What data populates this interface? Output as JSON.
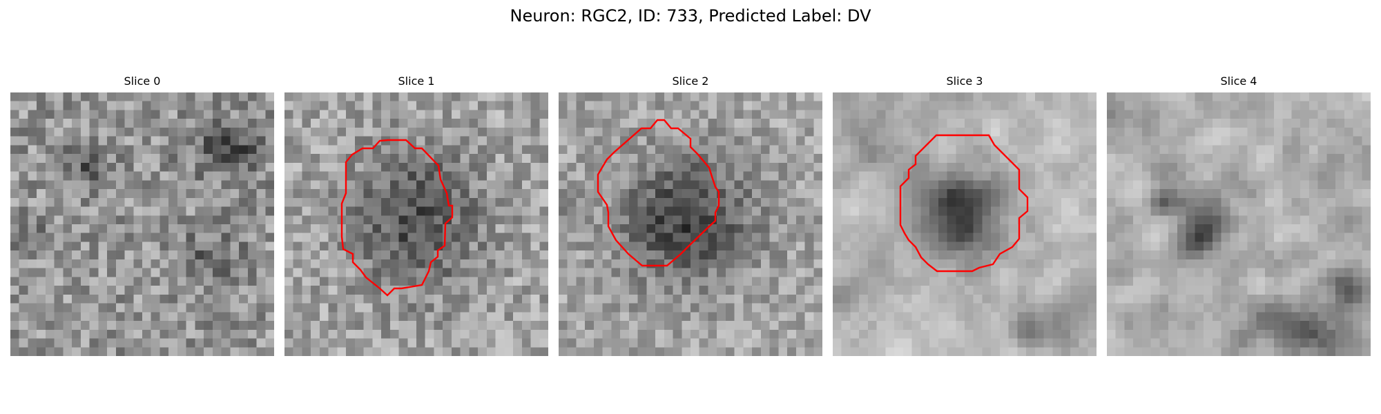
{
  "title": "Neuron: RGC2, ID: 733, Predicted Label: DV",
  "contour_color": "#ff0000",
  "colormap": "gray",
  "slices": [
    {
      "label": "Slice 0",
      "has_contour": false
    },
    {
      "label": "Slice 1",
      "has_contour": true
    },
    {
      "label": "Slice 2",
      "has_contour": true
    },
    {
      "label": "Slice 3",
      "has_contour": true
    },
    {
      "label": "Slice 4",
      "has_contour": false
    }
  ]
}
